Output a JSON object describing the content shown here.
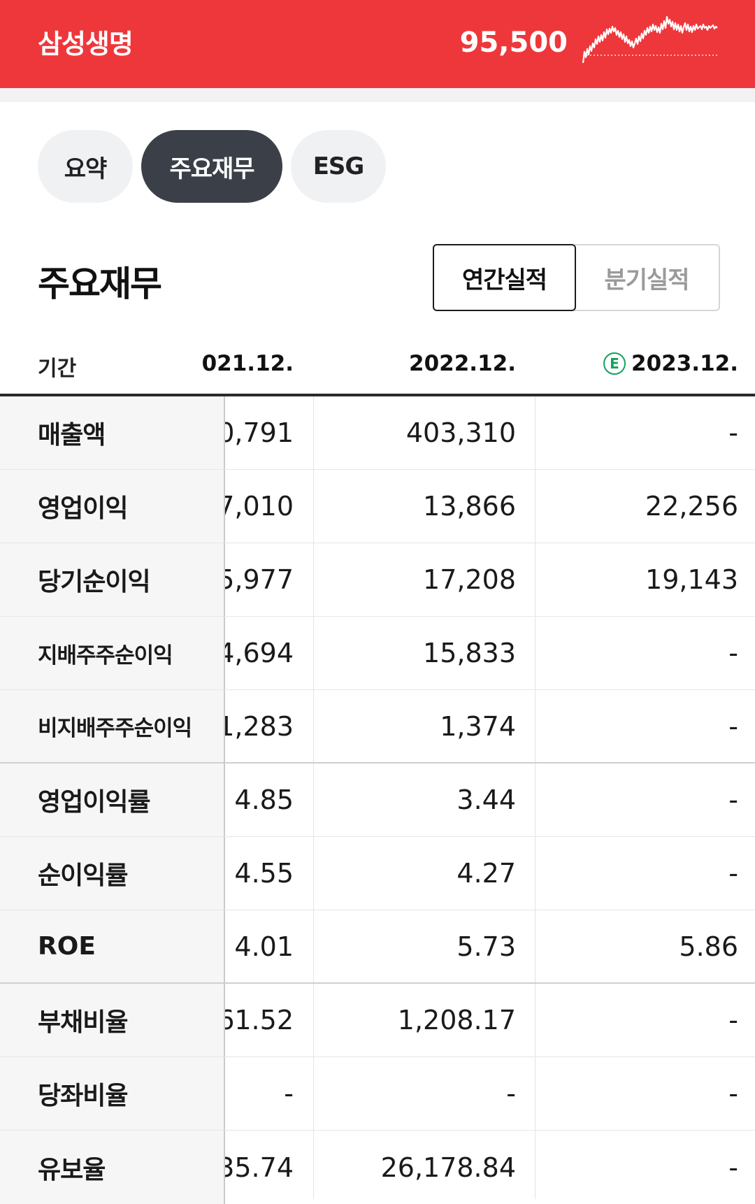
{
  "header": {
    "company": "삼성생명",
    "price": "95,500",
    "accent_color": "#ee373b"
  },
  "tabs": [
    {
      "label": "요약",
      "active": false
    },
    {
      "label": "주요재무",
      "active": true
    },
    {
      "label": "ESG",
      "active": false
    }
  ],
  "section": {
    "title": "주요재무",
    "toggle": {
      "annual": "연간실적",
      "quarterly": "분기실적",
      "selected": "annual"
    }
  },
  "table": {
    "period_label": "기간",
    "columns": [
      "021.12.",
      "2022.12.",
      "2023.12."
    ],
    "estimate_icon": "estimate-e-icon",
    "estimate_mark": "E",
    "rows": [
      {
        "label": "매출액",
        "values": [
          "0,791",
          "403,310",
          "-"
        ]
      },
      {
        "label": "영업이익",
        "values": [
          "7,010",
          "13,866",
          "22,256"
        ]
      },
      {
        "label": "당기순이익",
        "values": [
          "5,977",
          "17,208",
          "19,143"
        ]
      },
      {
        "label": "지배주주순이익",
        "values": [
          "4,694",
          "15,833",
          "-"
        ]
      },
      {
        "label": "비지배주주순이익",
        "values": [
          "1,283",
          "1,374",
          "-"
        ]
      },
      {
        "label": "영업이익률",
        "values": [
          "4.85",
          "3.44",
          "-"
        ]
      },
      {
        "label": "순이익률",
        "values": [
          "4.55",
          "4.27",
          "-"
        ]
      },
      {
        "label": "ROE",
        "values": [
          "4.01",
          "5.73",
          "5.86"
        ]
      },
      {
        "label": "부채비율",
        "values": [
          "61.52",
          "1,208.17",
          "-"
        ]
      },
      {
        "label": "당좌비율",
        "values": [
          "-",
          "-",
          "-"
        ]
      },
      {
        "label": "유보율",
        "values": [
          "35.74",
          "26,178.84",
          "-"
        ]
      }
    ]
  }
}
